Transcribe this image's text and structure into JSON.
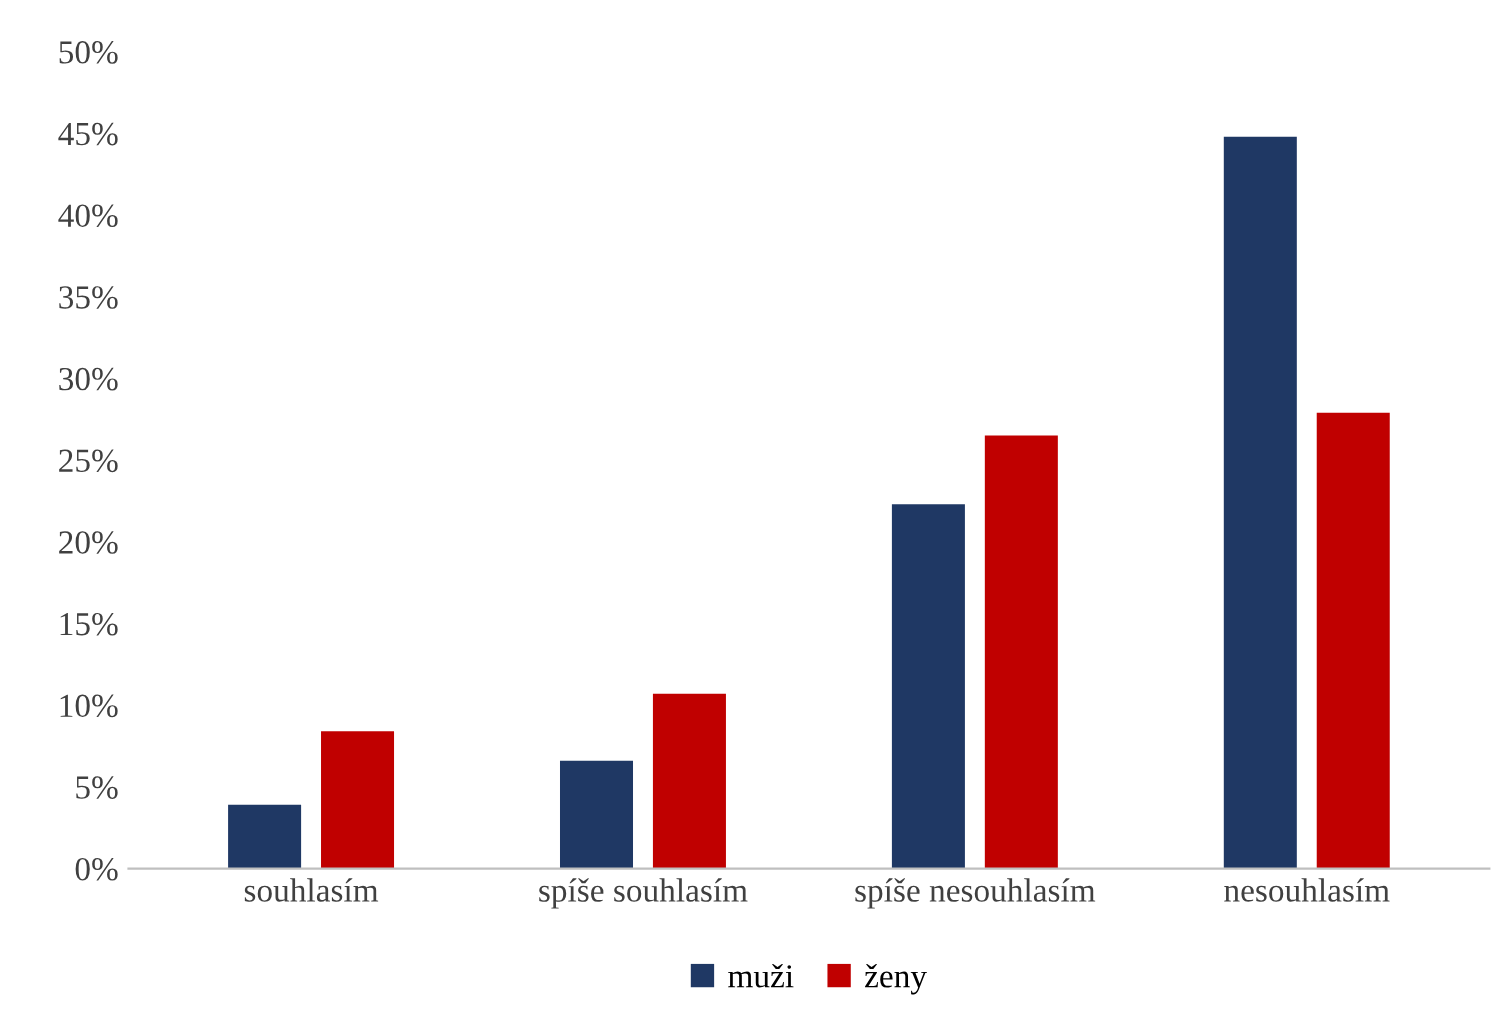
{
  "chart_data": {
    "type": "bar",
    "categories": [
      "souhlasím",
      "spíše souhlasím",
      "spíše nesouhlasím",
      "nesouhlasím"
    ],
    "series": [
      {
        "name": "muži",
        "color": "#1f3864",
        "values": [
          3.9,
          6.6,
          22.3,
          44.8
        ]
      },
      {
        "name": "ženy",
        "color": "#c00000",
        "values": [
          8.4,
          10.7,
          26.5,
          27.9
        ]
      }
    ],
    "ylim": [
      0,
      50
    ],
    "yticks": [
      {
        "value": 0,
        "label": "0%"
      },
      {
        "value": 5,
        "label": "5%"
      },
      {
        "value": 10,
        "label": "10%"
      },
      {
        "value": 15,
        "label": "15%"
      },
      {
        "value": 20,
        "label": "20%"
      },
      {
        "value": 25,
        "label": "25%"
      },
      {
        "value": 30,
        "label": "30%"
      },
      {
        "value": 35,
        "label": "35%"
      },
      {
        "value": 40,
        "label": "40%"
      },
      {
        "value": 45,
        "label": "45%"
      },
      {
        "value": 50,
        "label": "50%"
      }
    ],
    "grid": false,
    "legend": "bottom"
  }
}
